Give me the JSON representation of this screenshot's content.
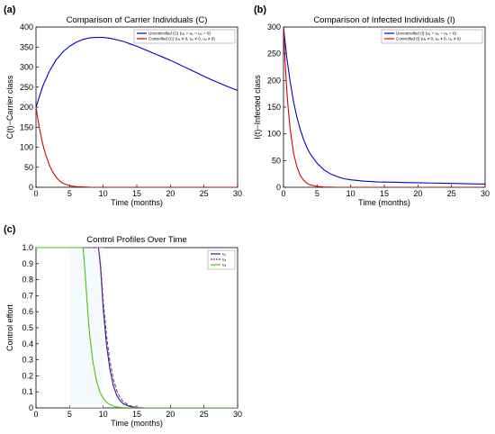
{
  "chart_data": [
    {
      "panel": "(a)",
      "type": "line",
      "title": "Comparison of Carrier Individuals (C)",
      "xlabel": "Time (months)",
      "ylabel": "C(t)−Carrier class",
      "xlim": [
        0,
        30
      ],
      "ylim": [
        0,
        400
      ],
      "xticks": [
        0,
        5,
        10,
        15,
        20,
        25,
        30
      ],
      "yticks": [
        0,
        50,
        100,
        150,
        200,
        250,
        300,
        350,
        400
      ],
      "grid": false,
      "legend_position": "top-right",
      "series": [
        {
          "name": "Uncontrolled (C) (u₁ = u₂ = u₃ = 0)",
          "color": "#0000cc",
          "x": [
            0,
            1,
            2,
            3,
            4,
            5,
            6,
            7,
            8,
            9,
            10,
            11,
            12,
            13,
            14,
            15,
            16,
            17,
            18,
            19,
            20,
            21,
            22,
            23,
            24,
            25,
            26,
            27,
            28,
            29,
            30
          ],
          "y": [
            200,
            252,
            290,
            318,
            338,
            352,
            362,
            369,
            373,
            374,
            374,
            372,
            368,
            364,
            358,
            352,
            345,
            338,
            331,
            324,
            317,
            309,
            301,
            293,
            285,
            277,
            269,
            262,
            255,
            248,
            242
          ]
        },
        {
          "name": "Controlled (C) (u₁ ≠ 0, u₂ ≠ 0, u₃ ≠ 0)",
          "color": "#dd0000",
          "x": [
            0,
            0.5,
            1,
            1.5,
            2,
            2.5,
            3,
            3.5,
            4,
            5,
            6,
            8,
            10,
            15,
            20,
            25,
            30
          ],
          "y": [
            200,
            148,
            108,
            78,
            55,
            38,
            25,
            16,
            10,
            4,
            1.5,
            0.3,
            0,
            0,
            0,
            0,
            0
          ]
        }
      ]
    },
    {
      "panel": "(b)",
      "type": "line",
      "title": "Comparison of Infected Individuals (I)",
      "xlabel": "Time (months)",
      "ylabel": "I(t)−Infected class",
      "xlim": [
        0,
        30
      ],
      "ylim": [
        0,
        300
      ],
      "xticks": [
        0,
        5,
        10,
        15,
        20,
        25,
        30
      ],
      "yticks": [
        0,
        50,
        100,
        150,
        200,
        250,
        300
      ],
      "grid": false,
      "legend_position": "top-right",
      "series": [
        {
          "name": "Uncontrolled (I) (u₁ = u₂ = u₃ = 0)",
          "color": "#0000cc",
          "x": [
            0,
            0.5,
            1,
            1.5,
            2,
            2.5,
            3,
            3.5,
            4,
            5,
            6,
            7,
            8,
            9,
            10,
            12,
            14,
            16,
            18,
            20,
            22,
            24,
            26,
            28,
            30
          ],
          "y": [
            300,
            242,
            197,
            160,
            131,
            108,
            89,
            74,
            62,
            45,
            33,
            25,
            20,
            16,
            14,
            11.5,
            10,
            9.5,
            9,
            8.5,
            8,
            7.5,
            7,
            6.5,
            6
          ]
        },
        {
          "name": "Controlled (I) (u₁ ≠ 0, u₂ ≠ 0, u₃ ≠ 0)",
          "color": "#dd0000",
          "x": [
            0,
            0.25,
            0.5,
            0.75,
            1,
            1.5,
            2,
            2.5,
            3,
            3.5,
            4,
            5,
            6,
            8,
            10,
            15,
            20,
            25,
            30
          ],
          "y": [
            300,
            232,
            180,
            140,
            108,
            64,
            38,
            22,
            13,
            7.5,
            4.5,
            1.5,
            0.5,
            0,
            0,
            0,
            0,
            0,
            0
          ]
        }
      ]
    },
    {
      "panel": "(c)",
      "type": "line",
      "title": "Control Profiles Over Time",
      "xlabel": "Time (months)",
      "ylabel": "Control effort",
      "xlim": [
        0,
        30
      ],
      "ylim": [
        0,
        1.0
      ],
      "xticks": [
        0,
        5,
        10,
        15,
        20,
        25,
        30
      ],
      "yticks": [
        0,
        0.1,
        0.2,
        0.3,
        0.4,
        0.5,
        0.6,
        0.7,
        0.8,
        0.9,
        1.0
      ],
      "ytick_labels": [
        "0",
        "0.1",
        "0.2",
        "0.3",
        "0.4",
        "0.5",
        "0.6",
        "0.7",
        "0.8",
        "0.9",
        "1.0"
      ],
      "grid": false,
      "legend_position": "top-right",
      "series": [
        {
          "name": "u₁",
          "color": "#2222aa",
          "dash": "",
          "x": [
            0,
            9.3,
            9.6,
            10,
            10.5,
            11,
            11.5,
            12,
            12.5,
            13,
            14,
            15,
            16,
            30
          ],
          "y": [
            1,
            1,
            0.88,
            0.62,
            0.39,
            0.24,
            0.14,
            0.08,
            0.045,
            0.025,
            0.008,
            0.002,
            0,
            0
          ]
        },
        {
          "name": "u₂",
          "color": "#993366",
          "dash": "4,2",
          "x": [
            0,
            9.3,
            9.6,
            10,
            10.5,
            11,
            11.5,
            12,
            12.5,
            13,
            14,
            15,
            16,
            30
          ],
          "y": [
            1,
            1,
            0.9,
            0.67,
            0.45,
            0.29,
            0.18,
            0.11,
            0.065,
            0.038,
            0.013,
            0.004,
            0,
            0
          ]
        },
        {
          "name": "u₃",
          "color": "#44cc00",
          "dash": "",
          "x": [
            0,
            7,
            7.3,
            7.7,
            8,
            8.5,
            9,
            9.5,
            10,
            10.5,
            11,
            12,
            13,
            14,
            30
          ],
          "y": [
            1,
            1,
            0.85,
            0.6,
            0.45,
            0.28,
            0.17,
            0.1,
            0.06,
            0.035,
            0.02,
            0.006,
            0.002,
            0,
            0
          ]
        }
      ]
    }
  ]
}
